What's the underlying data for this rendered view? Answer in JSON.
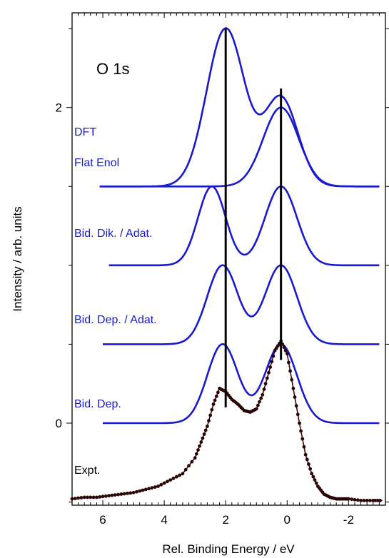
{
  "chart_data": {
    "type": "line",
    "title": "O 1s",
    "xlabel": "Rel. Binding Energy / eV",
    "ylabel": "Intensity / arb. units",
    "xlim": [
      7,
      -3.2
    ],
    "ylim": [
      -0.52,
      2.6
    ],
    "x_ticks": [
      6,
      4,
      2,
      0,
      -2
    ],
    "x_tick_labels": [
      "6",
      "4",
      "2",
      "0",
      "-2"
    ],
    "y_ticks": [
      0,
      2
    ],
    "y_tick_labels": [
      "0",
      "2"
    ],
    "reference_lines": [
      {
        "x": 2.0,
        "y_from": 0.1,
        "y_to": 2.5
      },
      {
        "x": 0.2,
        "y_from": 0.4,
        "y_to": 2.12
      }
    ],
    "series": [
      {
        "name": "DFT",
        "label": "DFT",
        "color": "#1a1acc",
        "baseline": 1.5,
        "x_range": [
          6.1,
          -3.0
        ],
        "peaks": [
          {
            "center": 2.0,
            "height": 1.0,
            "sigma": 0.62
          },
          {
            "center": 0.2,
            "height": 0.56,
            "sigma": 0.55
          }
        ]
      },
      {
        "name": "Flat Enol",
        "label": "Flat Enol",
        "color": "#1a1acc",
        "baseline": 1.5,
        "x_range": [
          6.1,
          -3.0
        ],
        "peaks": [
          {
            "center": 0.2,
            "height": 0.5,
            "sigma": 0.58
          }
        ]
      },
      {
        "name": "Bid. Dik. / Adat.",
        "label": "Bid. Dik. / Adat.",
        "color": "#1a1acc",
        "baseline": 1.0,
        "x_range": [
          5.8,
          -3.0
        ],
        "peaks": [
          {
            "center": 2.45,
            "height": 0.5,
            "sigma": 0.45
          },
          {
            "center": 0.2,
            "height": 0.5,
            "sigma": 0.52
          }
        ]
      },
      {
        "name": "Bid. Dep. / Adat.",
        "label": "Bid. Dep. / Adat.",
        "color": "#1a1acc",
        "baseline": 0.5,
        "x_range": [
          6.0,
          -3.0
        ],
        "peaks": [
          {
            "center": 2.1,
            "height": 0.5,
            "sigma": 0.5
          },
          {
            "center": 0.2,
            "height": 0.5,
            "sigma": 0.52
          }
        ]
      },
      {
        "name": "Bid. Dep.",
        "label": "Bid. Dep.",
        "color": "#1a1acc",
        "baseline": 0.0,
        "x_range": [
          6.0,
          -3.0
        ],
        "peaks": [
          {
            "center": 2.1,
            "height": 0.5,
            "sigma": 0.5
          },
          {
            "center": 0.2,
            "height": 0.5,
            "sigma": 0.52
          }
        ]
      },
      {
        "name": "Expt.",
        "label": "Expt.",
        "color": "#3a0a0a",
        "marker_color": "#2a0505",
        "x": [
          7.0,
          6.6,
          6.2,
          5.8,
          5.4,
          5.0,
          4.6,
          4.2,
          3.8,
          3.4,
          3.0,
          2.8,
          2.6,
          2.4,
          2.2,
          2.0,
          1.8,
          1.6,
          1.4,
          1.2,
          1.0,
          0.8,
          0.6,
          0.4,
          0.2,
          0.0,
          -0.2,
          -0.4,
          -0.6,
          -0.8,
          -1.0,
          -1.2,
          -1.4,
          -1.6,
          -1.8,
          -2.0,
          -2.4,
          -2.8,
          -3.1
        ],
        "y": [
          -0.48,
          -0.47,
          -0.47,
          -0.46,
          -0.45,
          -0.44,
          -0.42,
          -0.4,
          -0.36,
          -0.32,
          -0.22,
          -0.12,
          -0.02,
          0.12,
          0.22,
          0.2,
          0.15,
          0.12,
          0.08,
          0.07,
          0.09,
          0.18,
          0.32,
          0.46,
          0.52,
          0.44,
          0.22,
          0.0,
          -0.2,
          -0.32,
          -0.4,
          -0.45,
          -0.47,
          -0.48,
          -0.48,
          -0.48,
          -0.49,
          -0.49,
          -0.49
        ]
      }
    ],
    "legend": "none",
    "grid": false
  }
}
